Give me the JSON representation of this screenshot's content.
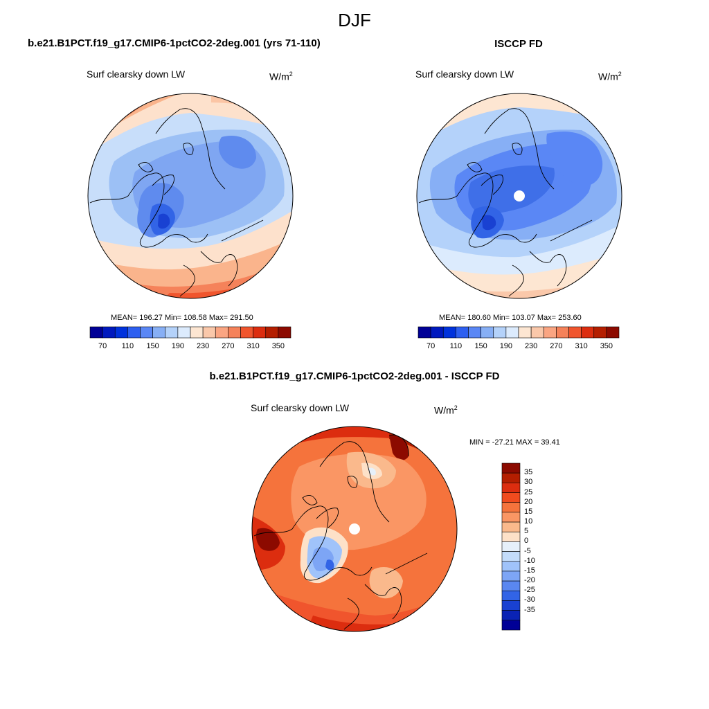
{
  "title": "DJF",
  "left_panel": {
    "case_title": "b.e21.B1PCT.f19_g17.CMIP6-1pctCO2-2deg.001 (yrs 71-110)",
    "variable": "Surf clearsky down LW",
    "units_base": "W/m",
    "units_exp": "2",
    "stats": "MEAN= 196.27  Min= 108.58  Max= 291.50",
    "stats_values": {
      "mean": 196.27,
      "min": 108.58,
      "max": 291.5
    }
  },
  "right_panel": {
    "case_title": "ISCCP FD",
    "variable": "Surf clearsky down LW",
    "units_base": "W/m",
    "units_exp": "2",
    "stats": "MEAN= 180.60  Min= 103.07  Max= 253.60",
    "stats_values": {
      "mean": 180.6,
      "min": 103.07,
      "max": 253.6
    }
  },
  "diff_panel": {
    "case_title": "b.e21.B1PCT.f19_g17.CMIP6-1pctCO2-2deg.001 - ISCCP FD",
    "variable": "Surf clearsky down LW",
    "units_base": "W/m",
    "units_exp": "2",
    "stats": "MIN = -27.21 MAX =  39.41",
    "stats_values": {
      "min": -27.21,
      "max": 39.41
    }
  },
  "horizontal_colorbar": {
    "colors": [
      "#000096",
      "#0019be",
      "#0032dc",
      "#2d5ff0",
      "#5a87f5",
      "#87aff5",
      "#b4d2fa",
      "#dcebfd",
      "#fde6d2",
      "#fac8aa",
      "#faa582",
      "#f5825a",
      "#f0552d",
      "#dc2d0f",
      "#b41e00",
      "#8c0a00"
    ],
    "tick_labels": [
      "70",
      "110",
      "150",
      "190",
      "230",
      "270",
      "310",
      "350"
    ]
  },
  "vertical_colorbar": {
    "colors": [
      "#8c0a00",
      "#b41e00",
      "#dc2d0f",
      "#f04b1e",
      "#f5733c",
      "#fa9664",
      "#fab98c",
      "#fde1c8",
      "#e6f0fa",
      "#c3dcfa",
      "#a0c3fa",
      "#7da5f5",
      "#5a87f0",
      "#3264e6",
      "#1941d2",
      "#0a23b4",
      "#000096"
    ],
    "tick_labels": [
      "35",
      "30",
      "25",
      "20",
      "15",
      "10",
      "5",
      "0",
      "-5",
      "-10",
      "-15",
      "-20",
      "-25",
      "-30",
      "-35"
    ]
  },
  "chart_data": [
    {
      "type": "heatmap",
      "title": "Surf clearsky down LW",
      "subtitle": "b.e21.B1PCT.f19_g17.CMIP6-1pctCO2-2deg.001 (yrs 71-110)",
      "projection": "north polar stereographic",
      "units": "W/m2",
      "contour_levels": [
        70,
        90,
        110,
        130,
        150,
        170,
        190,
        210,
        230,
        250,
        270,
        290,
        310,
        330,
        350
      ],
      "mean": 196.27,
      "min": 108.58,
      "max": 291.5
    },
    {
      "type": "heatmap",
      "title": "Surf clearsky down LW",
      "subtitle": "ISCCP FD",
      "projection": "north polar stereographic",
      "units": "W/m2",
      "contour_levels": [
        70,
        90,
        110,
        130,
        150,
        170,
        190,
        210,
        230,
        250,
        270,
        290,
        310,
        330,
        350
      ],
      "mean": 180.6,
      "min": 103.07,
      "max": 253.6
    },
    {
      "type": "heatmap",
      "title": "Surf clearsky down LW",
      "subtitle": "b.e21.B1PCT.f19_g17.CMIP6-1pctCO2-2deg.001 - ISCCP FD",
      "projection": "north polar stereographic",
      "units": "W/m2",
      "contour_levels": [
        -35,
        -30,
        -25,
        -20,
        -15,
        -10,
        -5,
        0,
        5,
        10,
        15,
        20,
        25,
        30,
        35
      ],
      "min": -27.21,
      "max": 39.41
    }
  ]
}
